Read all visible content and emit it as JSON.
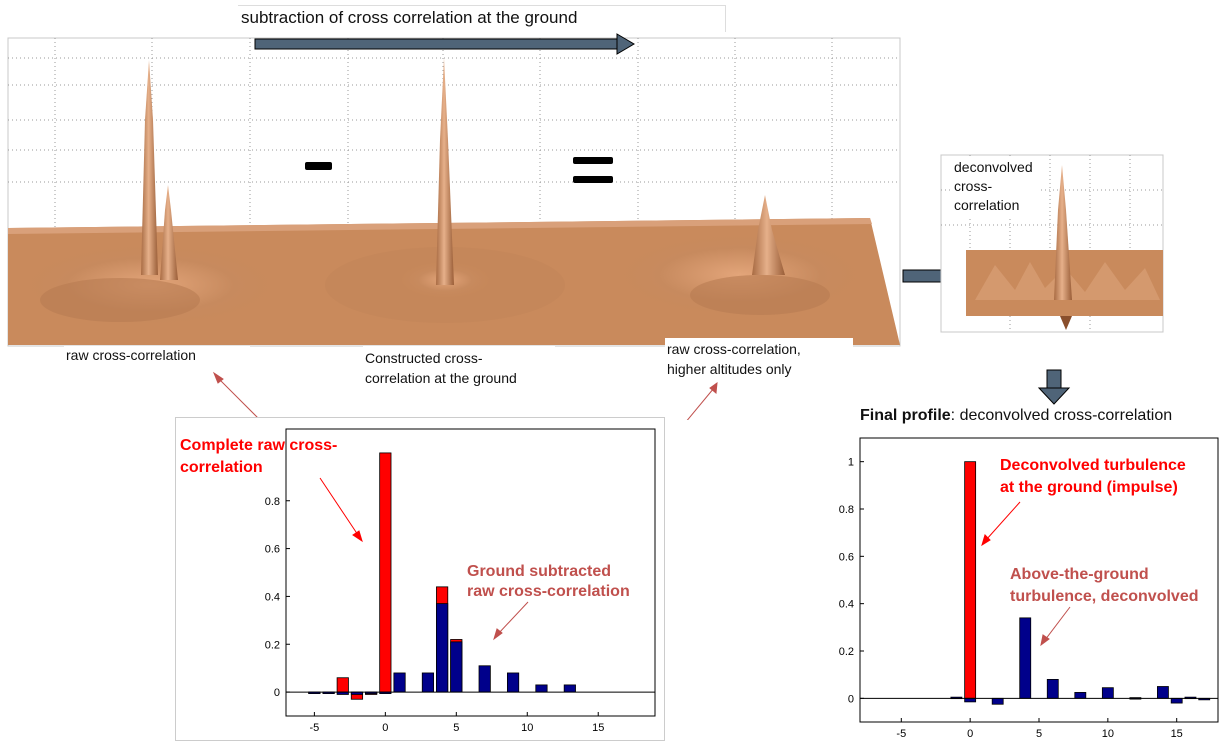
{
  "top": {
    "arrow_label": "subtraction of cross correlation at the ground",
    "minus_sign": "–",
    "equals_sign": "="
  },
  "surfaces": {
    "raw_label": "raw cross-correlation",
    "ground_label_line1": "Constructed cross-",
    "ground_label_line2": "correlation at the ground",
    "higher_label_line1": "raw cross-correlation,",
    "higher_label_line2": "higher altitudes only",
    "deconv_label_line1": "deconvolved",
    "deconv_label_line2": "cross-",
    "deconv_label_line3": "correlation"
  },
  "left_annotations": {
    "complete_line1": "Complete raw cross-",
    "complete_line2": "correlation",
    "ground_sub_line1": "Ground subtracted",
    "ground_sub_line2": "raw cross-correlation"
  },
  "right_annotations": {
    "final_bold": "Final profile",
    "final_rest": ": deconvolved cross-correlation",
    "deconv_line1": "Deconvolved turbulence",
    "deconv_line2": "at the ground (impulse)",
    "above_line1": "Above-the-ground",
    "above_line2": "turbulence, deconvolved"
  },
  "colors": {
    "red": "#ff0000",
    "navy": "#00008b",
    "surface": "#c98a5c",
    "arrow": "#4f6478",
    "annotation": "#c0504d"
  },
  "chart_data": [
    {
      "type": "bar",
      "x": [
        -6,
        -5,
        -4,
        -3,
        -2,
        -1,
        0,
        1,
        2,
        3,
        4,
        5,
        6,
        7,
        8,
        9,
        10,
        11,
        12,
        13,
        14,
        15,
        16,
        17,
        18
      ],
      "series": [
        {
          "values": [
            0,
            -0.005,
            -0.005,
            0.06,
            -0.03,
            -0.01,
            1.0,
            0,
            0,
            0,
            0.44,
            0.22,
            0,
            0,
            0,
            0,
            0,
            0,
            0,
            0,
            0,
            0,
            0,
            0,
            0
          ]
        },
        {
          "values": [
            0,
            -0.005,
            -0.005,
            -0.01,
            -0.01,
            -0.005,
            -0.005,
            0.08,
            0,
            0.08,
            0.37,
            0.21,
            0,
            0.11,
            0,
            0.08,
            0,
            0.03,
            0,
            0.03,
            0,
            0,
            0,
            0,
            0
          ]
        }
      ],
      "xticks": [
        -5,
        0,
        5,
        10,
        15
      ],
      "yticks": [
        0,
        0.2,
        0.4,
        0.6,
        0.8
      ],
      "xlim": [
        -7,
        19
      ],
      "ylim": [
        -0.1,
        1.1
      ]
    },
    {
      "type": "bar",
      "x": [
        -7,
        -6,
        -5,
        -4,
        -3,
        -2,
        -1,
        0,
        1,
        2,
        3,
        4,
        5,
        6,
        7,
        8,
        9,
        10,
        11,
        12,
        13,
        14,
        15,
        16,
        17
      ],
      "series": [
        {
          "values": [
            0,
            0,
            0,
            0,
            0,
            0,
            0,
            1.0,
            0,
            0,
            0,
            0,
            0,
            0,
            0,
            0,
            0,
            0,
            0,
            0,
            0,
            0,
            0,
            0,
            0
          ]
        },
        {
          "values": [
            0,
            0,
            0,
            0,
            0,
            0,
            0.005,
            -0.015,
            0,
            -0.025,
            0,
            0.34,
            0,
            0.08,
            0,
            0.025,
            0,
            0.045,
            0,
            0.003,
            0,
            0.05,
            -0.02,
            0.005,
            -0.003
          ]
        }
      ],
      "xticks": [
        -5,
        0,
        5,
        10,
        15
      ],
      "yticks": [
        0,
        0.2,
        0.4,
        0.6,
        0.8,
        1
      ],
      "xlim": [
        -8,
        18
      ],
      "ylim": [
        -0.1,
        1.1
      ]
    }
  ]
}
